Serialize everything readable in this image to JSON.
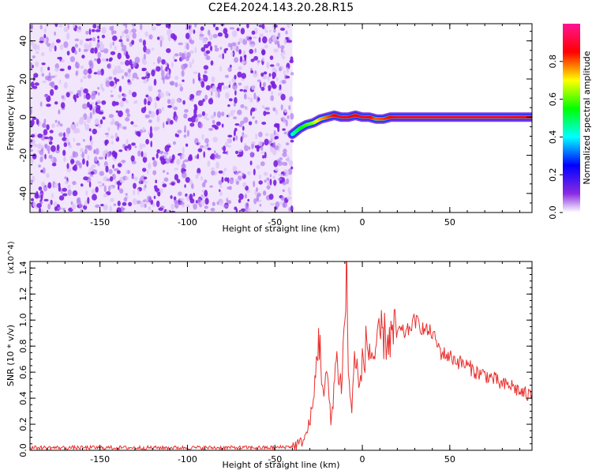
{
  "title": "C2E4.2024.143.20.28.R15",
  "chart_data": [
    {
      "type": "heatmap",
      "xlabel": "Height of straight line (km)",
      "ylabel": "Frequency (Hz)",
      "xlim": [
        -190,
        97
      ],
      "ylim": [
        -50,
        49
      ],
      "x_ticks": [
        -150,
        -100,
        -50,
        0,
        50
      ],
      "y_ticks": [
        -40,
        -20,
        0,
        20,
        40
      ],
      "colorbar": {
        "label": "Normalized spectral amplitude",
        "range": [
          0.0,
          1.0
        ],
        "ticks": [
          "0.0",
          "0.2",
          "0.4",
          "0.6",
          "0.8"
        ],
        "colors": [
          "#ffffff",
          "#8a2be2",
          "#0000ff",
          "#00ffff",
          "#00ff00",
          "#ffff00",
          "#ff0000",
          "#ff1493"
        ]
      },
      "noise_region": {
        "x_range": [
          -190,
          -40
        ],
        "level": 0.2
      },
      "signal_track": {
        "x": [
          -40,
          -36,
          -32,
          -28,
          -24,
          -20,
          -16,
          -12,
          -8,
          -4,
          0,
          4,
          8,
          12,
          16,
          20,
          30,
          40,
          50,
          60,
          70,
          80,
          90,
          97
        ],
        "freq": [
          -9,
          -6,
          -4,
          -3,
          -1,
          0,
          1,
          0,
          0,
          1,
          0,
          0,
          -1,
          -1,
          0,
          0,
          0,
          0,
          0,
          0,
          0,
          0,
          0,
          0
        ],
        "amplitude": [
          0.45,
          0.55,
          0.6,
          0.65,
          0.75,
          0.8,
          0.85,
          0.9,
          0.88,
          0.85,
          0.9,
          0.88,
          0.8,
          0.82,
          0.85,
          0.9,
          0.9,
          0.9,
          0.9,
          0.9,
          0.9,
          0.9,
          0.88,
          0.88
        ]
      }
    },
    {
      "type": "line",
      "xlabel": "Height of straight line (km)",
      "ylabel": "SNR (10 * v/v)",
      "y_multiplier": "(x10^4)",
      "xlim": [
        -190,
        97
      ],
      "ylim": [
        0,
        1.45
      ],
      "x_ticks": [
        -150,
        -100,
        -50,
        0,
        50
      ],
      "y_ticks": [
        "0.0",
        "0.2",
        "0.4",
        "0.6",
        "0.8",
        "1.0",
        "1.2",
        "1.4"
      ],
      "color": "#e8302e",
      "x": [
        -190,
        -170,
        -150,
        -130,
        -110,
        -90,
        -70,
        -50,
        -40,
        -35,
        -32,
        -28,
        -25,
        -22,
        -20,
        -18,
        -15,
        -12,
        -10,
        -9,
        -8,
        -6,
        -4,
        -2,
        0,
        2,
        5,
        8,
        10,
        15,
        20,
        25,
        30,
        35,
        40,
        45,
        50,
        55,
        60,
        65,
        70,
        75,
        80,
        85,
        90,
        95,
        97
      ],
      "y": [
        0.02,
        0.02,
        0.02,
        0.02,
        0.02,
        0.02,
        0.02,
        0.02,
        0.03,
        0.06,
        0.12,
        0.35,
        0.9,
        0.4,
        0.6,
        0.2,
        0.7,
        0.5,
        1.0,
        1.43,
        0.6,
        0.3,
        0.8,
        0.45,
        0.65,
        0.8,
        0.75,
        0.7,
        0.9,
        0.85,
        0.92,
        0.9,
        1.0,
        0.93,
        0.9,
        0.75,
        0.72,
        0.68,
        0.65,
        0.6,
        0.58,
        0.55,
        0.5,
        0.5,
        0.45,
        0.42,
        0.43
      ]
    }
  ]
}
